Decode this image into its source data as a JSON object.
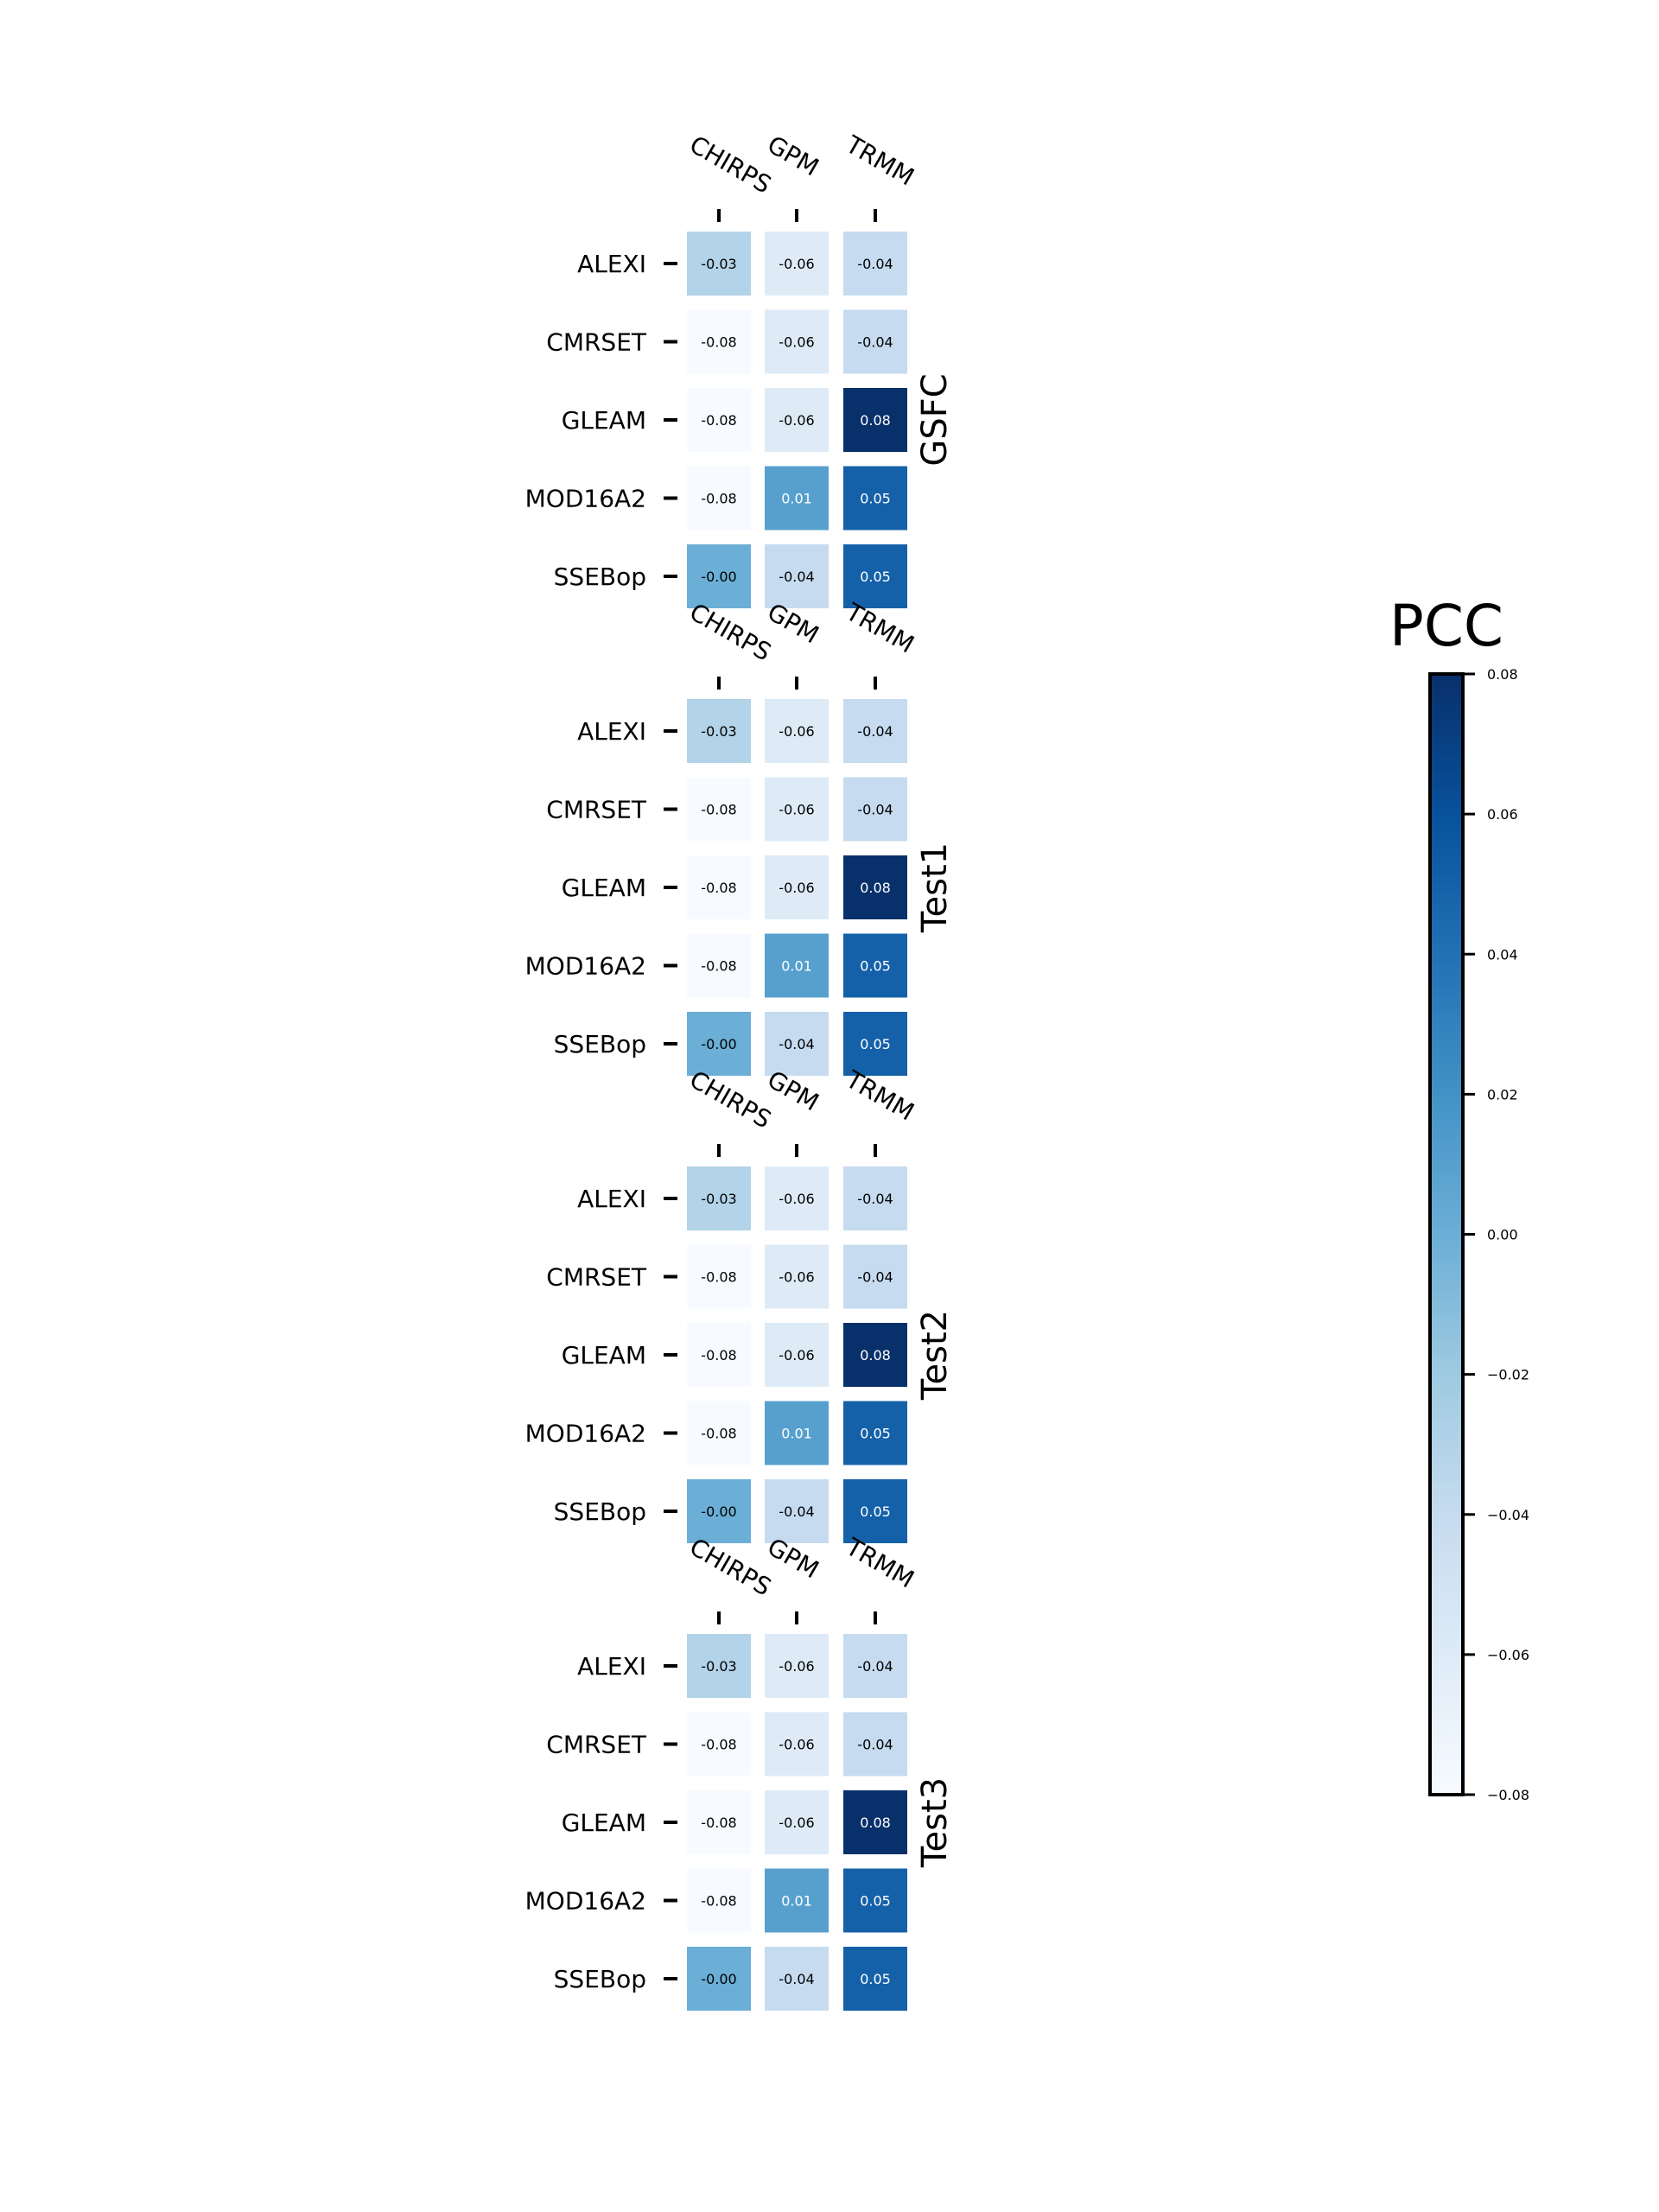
{
  "chart_data": {
    "type": "heatmap",
    "columns": [
      "CHIRPS",
      "GPM",
      "TRMM"
    ],
    "rows": [
      "ALEXI",
      "CMRSET",
      "GLEAM",
      "MOD16A2",
      "SSEBop"
    ],
    "panels": [
      {
        "name": "GSFC",
        "values": [
          [
            -0.03,
            -0.06,
            -0.04
          ],
          [
            -0.08,
            -0.06,
            -0.04
          ],
          [
            -0.08,
            -0.06,
            0.08
          ],
          [
            -0.08,
            0.01,
            0.05
          ],
          [
            -0.0,
            -0.04,
            0.05
          ]
        ],
        "labels": [
          [
            "-0.03",
            "-0.06",
            "-0.04"
          ],
          [
            "-0.08",
            "-0.06",
            "-0.04"
          ],
          [
            "-0.08",
            "-0.06",
            "0.08"
          ],
          [
            "-0.08",
            "0.01",
            "0.05"
          ],
          [
            "-0.00",
            "-0.04",
            "0.05"
          ]
        ]
      },
      {
        "name": "Test1",
        "values": [
          [
            -0.03,
            -0.06,
            -0.04
          ],
          [
            -0.08,
            -0.06,
            -0.04
          ],
          [
            -0.08,
            -0.06,
            0.08
          ],
          [
            -0.08,
            0.01,
            0.05
          ],
          [
            -0.0,
            -0.04,
            0.05
          ]
        ],
        "labels": [
          [
            "-0.03",
            "-0.06",
            "-0.04"
          ],
          [
            "-0.08",
            "-0.06",
            "-0.04"
          ],
          [
            "-0.08",
            "-0.06",
            "0.08"
          ],
          [
            "-0.08",
            "0.01",
            "0.05"
          ],
          [
            "-0.00",
            "-0.04",
            "0.05"
          ]
        ]
      },
      {
        "name": "Test2",
        "values": [
          [
            -0.03,
            -0.06,
            -0.04
          ],
          [
            -0.08,
            -0.06,
            -0.04
          ],
          [
            -0.08,
            -0.06,
            0.08
          ],
          [
            -0.08,
            0.01,
            0.05
          ],
          [
            -0.0,
            -0.04,
            0.05
          ]
        ],
        "labels": [
          [
            "-0.03",
            "-0.06",
            "-0.04"
          ],
          [
            "-0.08",
            "-0.06",
            "-0.04"
          ],
          [
            "-0.08",
            "-0.06",
            "0.08"
          ],
          [
            "-0.08",
            "0.01",
            "0.05"
          ],
          [
            "-0.00",
            "-0.04",
            "0.05"
          ]
        ]
      },
      {
        "name": "Test3",
        "values": [
          [
            -0.03,
            -0.06,
            -0.04
          ],
          [
            -0.08,
            -0.06,
            -0.04
          ],
          [
            -0.08,
            -0.06,
            0.08
          ],
          [
            -0.08,
            0.01,
            0.05
          ],
          [
            -0.0,
            -0.04,
            0.05
          ]
        ],
        "labels": [
          [
            "-0.03",
            "-0.06",
            "-0.04"
          ],
          [
            "-0.08",
            "-0.06",
            "-0.04"
          ],
          [
            "-0.08",
            "-0.06",
            "0.08"
          ],
          [
            "-0.08",
            "0.01",
            "0.05"
          ],
          [
            "-0.00",
            "-0.04",
            "0.05"
          ]
        ]
      }
    ],
    "colorbar": {
      "title": "PCC",
      "range": [
        -0.08,
        0.08
      ],
      "ticks": [
        0.08,
        0.06,
        0.04,
        0.02,
        0.0,
        -0.02,
        -0.04,
        -0.06,
        -0.08
      ],
      "tick_labels": [
        "0.08",
        "0.06",
        "0.04",
        "0.02",
        "0.00",
        "−0.02",
        "−0.04",
        "−0.06",
        "−0.08"
      ],
      "colormap": "Blues",
      "color_low": "#f7fbff",
      "color_high": "#08306b"
    }
  }
}
